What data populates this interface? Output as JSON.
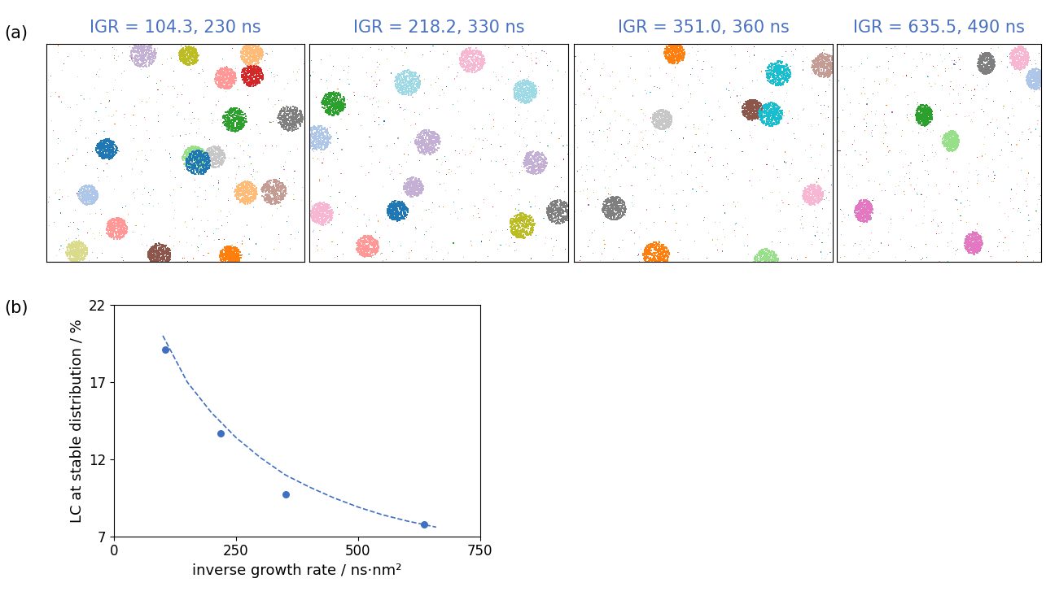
{
  "panel_labels": [
    "(a)",
    "(b)"
  ],
  "snapshots": [
    {
      "title": "IGR = 104.3, 230 ns"
    },
    {
      "title": "IGR = 218.2, 330 ns"
    },
    {
      "title": "IGR = 351.0, 360 ns"
    },
    {
      "title": "IGR = 635.5, 490 ns"
    }
  ],
  "title_color": "#4a72c0",
  "chart_data": {
    "type": "scatter",
    "x_label": "inverse growth rate / ns·nm²",
    "y_label": "LC at stable distribution / %",
    "xlim": [
      0,
      750
    ],
    "xticks": [
      0,
      250,
      500,
      750
    ],
    "ylim": [
      7,
      22
    ],
    "yticks": [
      7,
      12,
      17,
      22
    ],
    "grid": false,
    "series": [
      {
        "type": "scatter",
        "marker": "o",
        "color": "#3f6fc2",
        "x": [
          104.3,
          218.2,
          351.0,
          635.5
        ],
        "values": [
          19.1,
          13.7,
          9.7,
          7.8
        ]
      },
      {
        "type": "line",
        "line_style": "dashed",
        "color": "#3f6fc2",
        "x": [
          100,
          150,
          200,
          250,
          300,
          350,
          400,
          450,
          500,
          550,
          600,
          660
        ],
        "values": [
          20.0,
          17.0,
          15.0,
          13.4,
          12.1,
          11.0,
          10.2,
          9.5,
          8.9,
          8.4,
          8.0,
          7.6
        ]
      }
    ]
  }
}
